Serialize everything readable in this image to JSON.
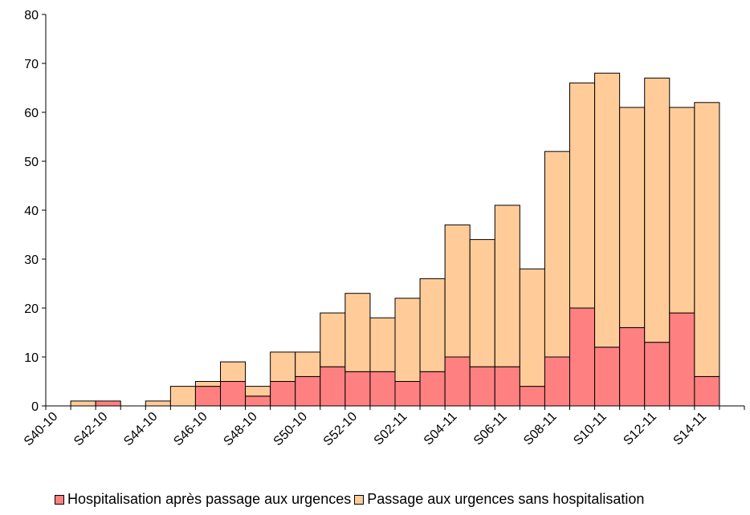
{
  "chart_data": {
    "type": "bar",
    "stacked": true,
    "categories": [
      "S40-10",
      "S41-10",
      "S42-10",
      "S43-10",
      "S44-10",
      "S45-10",
      "S46-10",
      "S47-10",
      "S48-10",
      "S49-10",
      "S50-10",
      "S51-10",
      "S52-10",
      "S01-11",
      "S02-11",
      "S03-11",
      "S04-11",
      "S05-11",
      "S06-11",
      "S07-11",
      "S08-11",
      "S09-11",
      "S10-11",
      "S11-11",
      "S12-11",
      "S13-11",
      "S14-11",
      "S15-11"
    ],
    "x_tick_labels": [
      "S40-10",
      "S42-10",
      "S44-10",
      "S46-10",
      "S48-10",
      "S50-10",
      "S52-10",
      "S02-11",
      "S04-11",
      "S06-11",
      "S08-11",
      "S10-11",
      "S12-11",
      "S14-11"
    ],
    "series": [
      {
        "name": "Hospitalisation après passage aux urgences",
        "color": "#ff8080",
        "values": [
          0,
          0,
          1,
          0,
          0,
          0,
          4,
          5,
          2,
          5,
          6,
          8,
          7,
          7,
          5,
          7,
          10,
          8,
          8,
          4,
          10,
          20,
          12,
          16,
          13,
          19,
          6,
          0
        ]
      },
      {
        "name": "Passage aux urgences sans hospitalisation",
        "color": "#ffcc99",
        "values": [
          0,
          1,
          0,
          0,
          1,
          4,
          1,
          4,
          2,
          6,
          5,
          11,
          16,
          11,
          17,
          19,
          27,
          26,
          33,
          24,
          42,
          46,
          56,
          45,
          54,
          42,
          56,
          0
        ]
      }
    ],
    "ylim": [
      0,
      80
    ],
    "yticks": [
      0,
      10,
      20,
      30,
      40,
      50,
      60,
      70,
      80
    ],
    "grid": false,
    "legend_position": "bottom",
    "title": "",
    "xlabel": "",
    "ylabel": ""
  }
}
